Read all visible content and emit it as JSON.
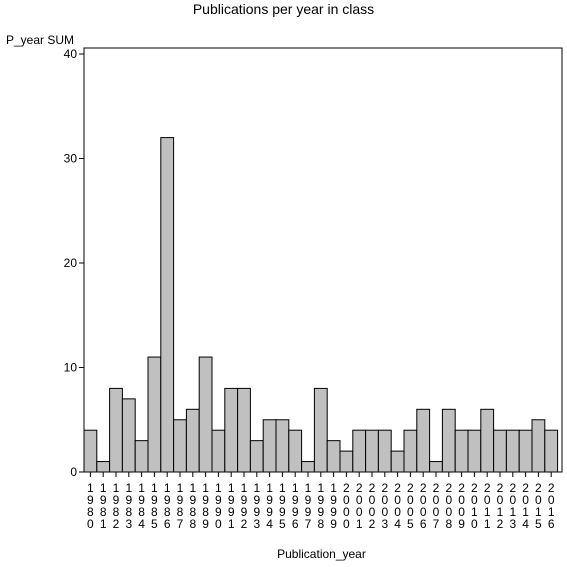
{
  "chart_data": {
    "type": "bar",
    "title": "Publications per year in class",
    "ylabel": "P_year SUM",
    "xlabel": "Publication_year",
    "ylim": [
      0,
      40
    ],
    "yticks": [
      0,
      10,
      20,
      30,
      40
    ],
    "grid": false,
    "bar_color": "#c0c0c0",
    "categories": [
      "1980",
      "1981",
      "1982",
      "1983",
      "1984",
      "1985",
      "1986",
      "1987",
      "1988",
      "1989",
      "1990",
      "1991",
      "1992",
      "1993",
      "1994",
      "1995",
      "1996",
      "1997",
      "1998",
      "1999",
      "2000",
      "2001",
      "2002",
      "2003",
      "2004",
      "2005",
      "2006",
      "2007",
      "2008",
      "2009",
      "2010",
      "2011",
      "2012",
      "2013",
      "2014",
      "2015",
      "2016"
    ],
    "values": [
      4,
      1,
      8,
      7,
      3,
      11,
      32,
      5,
      6,
      11,
      4,
      8,
      8,
      3,
      5,
      5,
      4,
      1,
      8,
      3,
      2,
      4,
      4,
      4,
      2,
      4,
      6,
      1,
      6,
      4,
      4,
      6,
      4,
      4,
      4,
      5,
      4
    ]
  }
}
